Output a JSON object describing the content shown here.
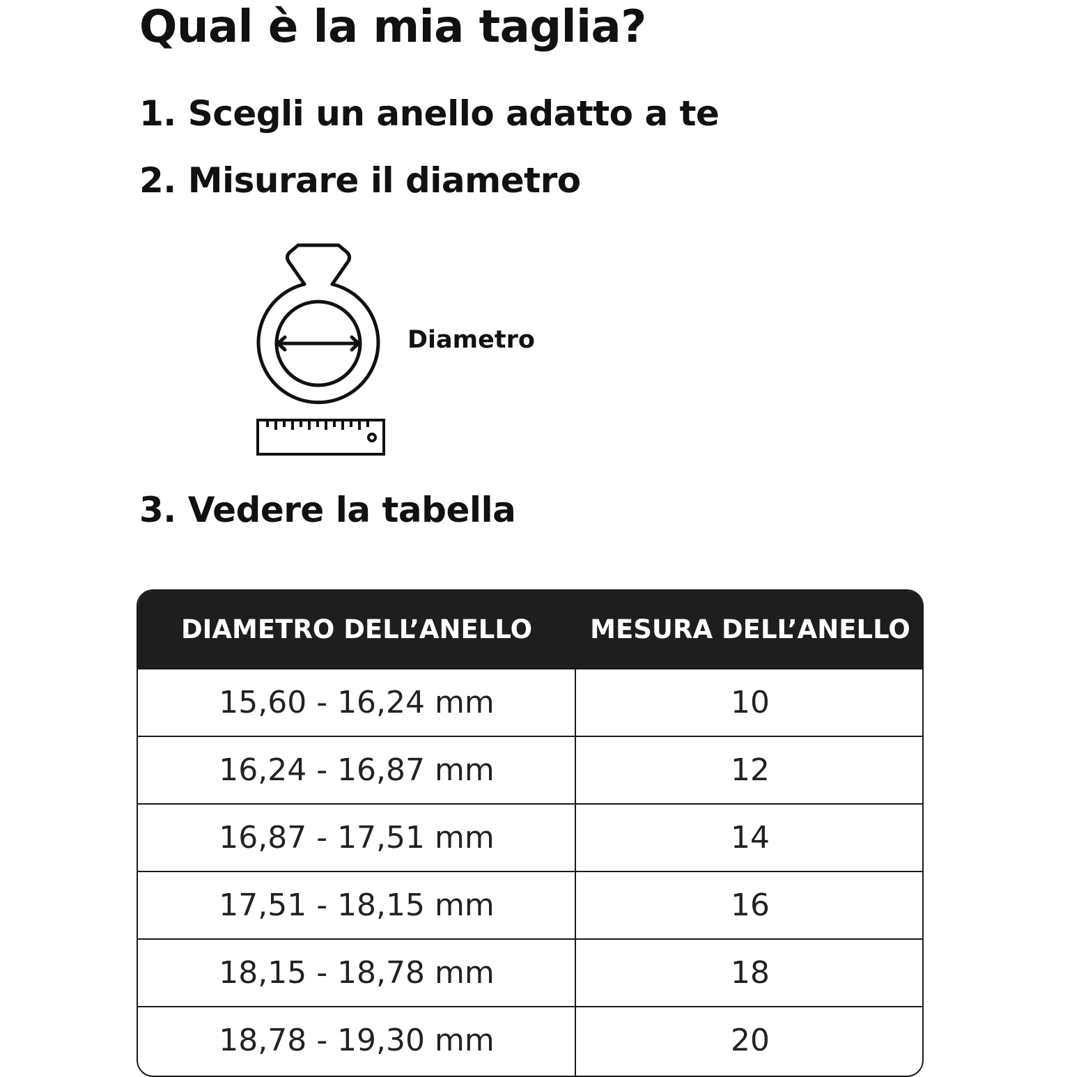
{
  "title": "Qual è la mia taglia?",
  "steps": [
    "1. Scegli un anello adatto a te",
    "2. Misurare il diametro",
    "3. Vedere la tabella"
  ],
  "diagram": {
    "label": "Diametro",
    "icons": [
      "ring-icon",
      "ruler-icon"
    ]
  },
  "table": {
    "headers": [
      "DIAMETRO DELL’ANELLO",
      "MESURA DELL’ANELLO"
    ],
    "rows": [
      [
        "15,60 - 16,24 mm",
        "10"
      ],
      [
        "16,24 - 16,87 mm",
        "12"
      ],
      [
        "16,87 - 17,51 mm",
        "14"
      ],
      [
        "17,51 - 18,15 mm",
        "16"
      ],
      [
        "18,15 - 18,78 mm",
        "18"
      ],
      [
        "18,78 - 19,30 mm",
        "20"
      ]
    ]
  }
}
